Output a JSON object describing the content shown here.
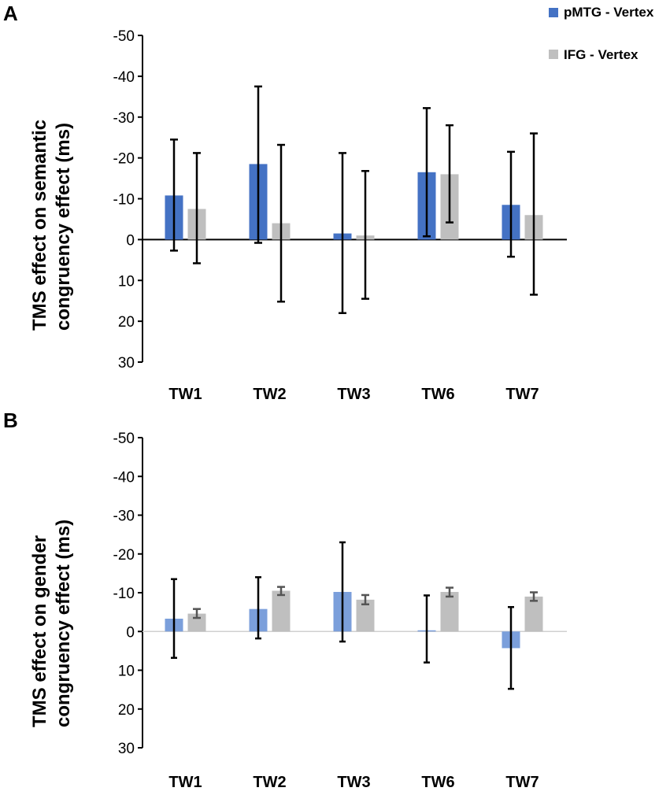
{
  "legend": {
    "items": [
      {
        "label": "pMTG - Vertex",
        "color": "#4472C4"
      },
      {
        "label": "IFG - Vertex",
        "color": "#BFBFBF"
      }
    ]
  },
  "chart_data": [
    {
      "panel": "A",
      "type": "bar",
      "title": "",
      "xlabel": "",
      "ylabel_lines": [
        "TMS effect on semantic",
        "congruency effect (ms)"
      ],
      "categories": [
        "TW1",
        "TW2",
        "TW3",
        "TW6",
        "TW7"
      ],
      "y_ticks": [
        -50,
        -40,
        -30,
        -20,
        -10,
        0,
        10,
        20,
        30
      ],
      "y_tick_labels": [
        "-50",
        "-40",
        "-30",
        "-20",
        "-10",
        "0",
        "10",
        "20",
        "30"
      ],
      "ylim": [
        -50,
        30
      ],
      "y_inverted": true,
      "series": [
        {
          "name": "pMTG - Vertex",
          "color": "#4472C4",
          "values": [
            -10.8,
            -18.5,
            -1.5,
            -16.5,
            -8.5
          ],
          "err_upper": [
            -24.5,
            -37.5,
            -21.2,
            -32.2,
            -21.5
          ],
          "err_lower": [
            2.7,
            0.8,
            18.0,
            -0.8,
            4.2
          ],
          "err_color": "#000000",
          "err_cap": 5
        },
        {
          "name": "IFG - Vertex",
          "color": "#BFBFBF",
          "values": [
            -7.5,
            -4.0,
            -1.0,
            -16.0,
            -6.0
          ],
          "err_upper": [
            -21.2,
            -23.2,
            -16.8,
            -28.0,
            -26.0
          ],
          "err_lower": [
            5.8,
            15.2,
            14.5,
            -4.2,
            13.5
          ],
          "err_color": "#000000",
          "err_cap": 5
        }
      ]
    },
    {
      "panel": "B",
      "type": "bar",
      "title": "",
      "xlabel": "",
      "ylabel_lines": [
        "TMS effect on gender",
        "congruency effect (ms)"
      ],
      "categories": [
        "TW1",
        "TW2",
        "TW3",
        "TW6",
        "TW7"
      ],
      "y_ticks": [
        -50,
        -40,
        -30,
        -20,
        -10,
        0,
        10,
        20,
        30
      ],
      "y_tick_labels": [
        "-50",
        "-40",
        "-30",
        "-20",
        "-10",
        "0",
        "10",
        "20",
        "30"
      ],
      "ylim": [
        -50,
        30
      ],
      "y_inverted": true,
      "series": [
        {
          "name": "pMTG - Vertex",
          "color": "#7B9FDB",
          "values": [
            -3.3,
            -5.8,
            -10.2,
            -0.3,
            4.3
          ],
          "err_upper": [
            -13.5,
            -14.0,
            -23.0,
            -9.3,
            -6.3
          ],
          "err_lower": [
            6.8,
            1.8,
            2.6,
            8.0,
            14.8
          ],
          "err_color": "#000000",
          "err_cap": 4
        },
        {
          "name": "IFG - Vertex",
          "color": "#BFBFBF",
          "values": [
            -4.6,
            -10.5,
            -8.2,
            -10.2,
            -9.0
          ],
          "err_upper": [
            -5.8,
            -11.5,
            -9.4,
            -11.3,
            -10.1
          ],
          "err_lower": [
            -3.5,
            -9.4,
            -7.0,
            -9.0,
            -7.9
          ],
          "err_color": "#555555",
          "err_cap": 5
        }
      ]
    }
  ]
}
